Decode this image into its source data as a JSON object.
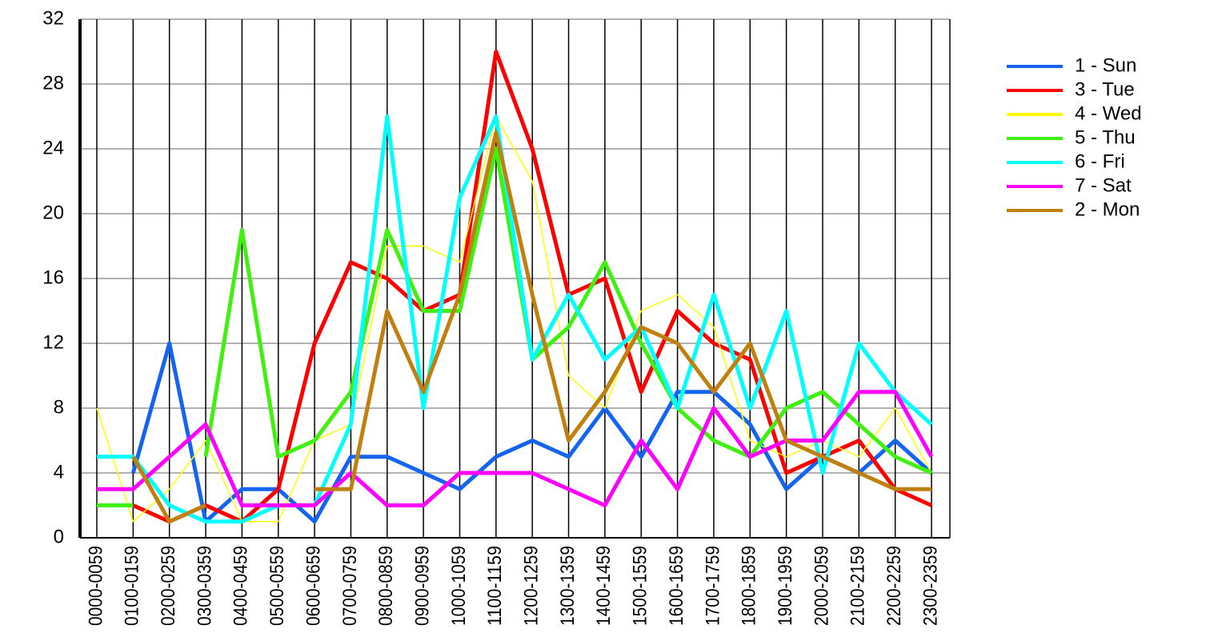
{
  "chart_data": {
    "type": "line",
    "categories": [
      "0000-0059",
      "0100-0159",
      "0200-0259",
      "0300-0359",
      "0400-0459",
      "0500-0559",
      "0600-0659",
      "0700-0759",
      "0800-0859",
      "0900-0959",
      "1000-1059",
      "1100-1159",
      "1200-1259",
      "1300-1359",
      "1400-1459",
      "1500-1559",
      "1600-1659",
      "1700-1759",
      "1800-1859",
      "1900-1959",
      "2000-2059",
      "2100-2159",
      "2200-2259",
      "2300-2359"
    ],
    "series": [
      {
        "name": "1 - Sun",
        "color": "#1464f0",
        "values": [
          null,
          4,
          12,
          1,
          3,
          3,
          1,
          5,
          5,
          4,
          3,
          5,
          6,
          5,
          8,
          5,
          9,
          9,
          7,
          3,
          5,
          4,
          6,
          4
        ]
      },
      {
        "name": "3 - Tue",
        "color": "#ff0000",
        "values": [
          null,
          2,
          1,
          2,
          1,
          3,
          12,
          17,
          16,
          14,
          15,
          30,
          24,
          15,
          16,
          9,
          14,
          12,
          11,
          4,
          5,
          6,
          3,
          2
        ]
      },
      {
        "name": "4 - Wed",
        "color": "#ffff00",
        "values": [
          8,
          1,
          3,
          6,
          1,
          1,
          6,
          7,
          18,
          18,
          17,
          26,
          22,
          10,
          8,
          14,
          15,
          13,
          6,
          5,
          6,
          5,
          8,
          4
        ]
      },
      {
        "name": "5 - Thu",
        "color": "#40f010",
        "values": [
          2,
          2,
          null,
          5,
          19,
          5,
          6,
          9,
          19,
          14,
          14,
          24,
          11,
          13,
          17,
          12,
          8,
          6,
          5,
          8,
          9,
          7,
          5,
          4
        ]
      },
      {
        "name": "6 - Fri",
        "color": "#00ffff",
        "values": [
          5,
          5,
          2,
          1,
          1,
          2,
          2,
          7,
          26,
          8,
          21,
          26,
          11,
          15,
          11,
          13,
          8,
          15,
          8,
          14,
          4,
          12,
          9,
          7
        ]
      },
      {
        "name": "7 - Sat",
        "color": "#ff00ff",
        "values": [
          3,
          3,
          5,
          7,
          2,
          2,
          2,
          4,
          2,
          2,
          4,
          4,
          4,
          3,
          2,
          6,
          3,
          8,
          5,
          6,
          6,
          9,
          9,
          5
        ]
      },
      {
        "name": "2 - Mon",
        "color": "#c08010",
        "values": [
          null,
          5,
          1,
          2,
          null,
          null,
          3,
          3,
          14,
          9,
          15,
          25,
          15,
          6,
          9,
          13,
          12,
          9,
          12,
          6,
          5,
          4,
          3,
          3
        ]
      }
    ],
    "ylim": [
      0,
      32
    ],
    "yticks": [
      0,
      4,
      8,
      12,
      16,
      20,
      24,
      28,
      32
    ],
    "grid": true,
    "legend": "right"
  }
}
